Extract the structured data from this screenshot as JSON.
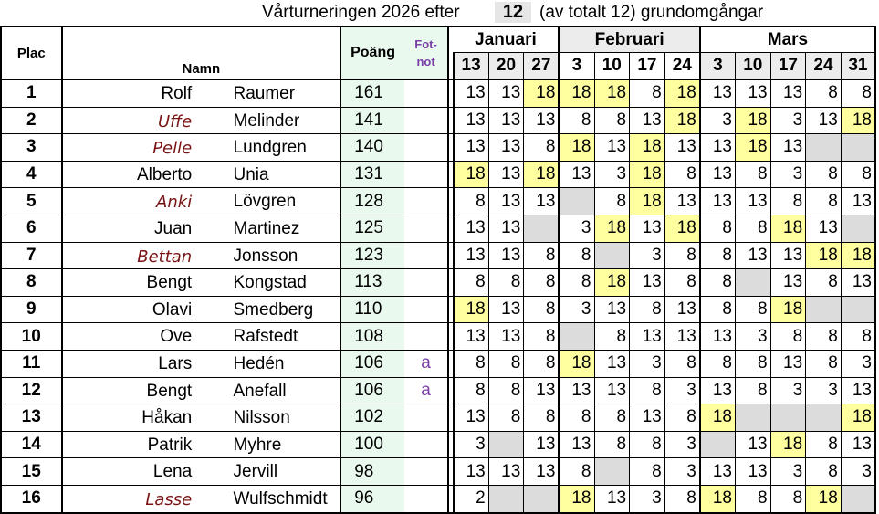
{
  "header": {
    "title_prefix": "Vårturneringen 2026 efter",
    "rounds_done": "12",
    "title_suffix": "(av totalt 12) grundomgångar"
  },
  "columns": {
    "plac": "Plac",
    "namn": "Namn",
    "poang": "Poäng",
    "fotnot": "Fot-\nnot",
    "months": [
      "Januari",
      "Februari",
      "Mars"
    ],
    "dates": [
      "13",
      "20",
      "27",
      "3",
      "10",
      "17",
      "24",
      "3",
      "10",
      "17",
      "24",
      "31"
    ]
  },
  "colors": {
    "highlight": "#ffffa0",
    "absent": "#dcdcdc",
    "points_bg": "#e9f9ee",
    "female_name": "#7a1414",
    "footnote": "#7a3fa8"
  },
  "players": [
    {
      "plac": "1",
      "first": "Rolf",
      "female": false,
      "last": "Raumer",
      "points": "161",
      "fotnot": "",
      "scores": [
        "13",
        "13",
        "18",
        "18",
        "18",
        "8",
        "18",
        "13",
        "13",
        "13",
        "8",
        "8"
      ]
    },
    {
      "plac": "2",
      "first": "Uffe",
      "female": true,
      "last": "Melinder",
      "points": "141",
      "fotnot": "",
      "scores": [
        "13",
        "13",
        "13",
        "8",
        "8",
        "13",
        "18",
        "3",
        "18",
        "3",
        "13",
        "18"
      ]
    },
    {
      "plac": "3",
      "first": "Pelle",
      "female": true,
      "last": "Lundgren",
      "points": "140",
      "fotnot": "",
      "scores": [
        "13",
        "13",
        "8",
        "18",
        "13",
        "18",
        "13",
        "13",
        "18",
        "13",
        "",
        ""
      ]
    },
    {
      "plac": "4",
      "first": "Alberto",
      "female": false,
      "last": "Unia",
      "points": "131",
      "fotnot": "",
      "scores": [
        "18",
        "13",
        "18",
        "13",
        "3",
        "18",
        "8",
        "13",
        "8",
        "3",
        "8",
        "8"
      ]
    },
    {
      "plac": "5",
      "first": "Anki",
      "female": true,
      "last": "Lövgren",
      "points": "128",
      "fotnot": "",
      "scores": [
        "8",
        "13",
        "13",
        "",
        "8",
        "18",
        "13",
        "13",
        "13",
        "8",
        "8",
        "13"
      ]
    },
    {
      "plac": "6",
      "first": "Juan",
      "female": false,
      "last": "Martinez",
      "points": "125",
      "fotnot": "",
      "scores": [
        "13",
        "13",
        "",
        "3",
        "18",
        "13",
        "18",
        "8",
        "8",
        "18",
        "13",
        ""
      ]
    },
    {
      "plac": "7",
      "first": "Bettan",
      "female": true,
      "last": "Jonsson",
      "points": "123",
      "fotnot": "",
      "scores": [
        "13",
        "13",
        "8",
        "8",
        "",
        "3",
        "8",
        "8",
        "13",
        "13",
        "18",
        "18"
      ]
    },
    {
      "plac": "8",
      "first": "Bengt",
      "female": false,
      "last": "Kongstad",
      "points": "113",
      "fotnot": "",
      "scores": [
        "8",
        "8",
        "8",
        "8",
        "18",
        "13",
        "8",
        "8",
        "",
        "13",
        "8",
        "13"
      ]
    },
    {
      "plac": "9",
      "first": "Olavi",
      "female": false,
      "last": "Smedberg",
      "points": "110",
      "fotnot": "",
      "scores": [
        "18",
        "13",
        "8",
        "3",
        "13",
        "8",
        "13",
        "8",
        "8",
        "18",
        "",
        ""
      ]
    },
    {
      "plac": "10",
      "first": "Ove",
      "female": false,
      "last": "Rafstedt",
      "points": "108",
      "fotnot": "",
      "scores": [
        "13",
        "13",
        "8",
        "",
        "8",
        "13",
        "13",
        "13",
        "3",
        "8",
        "8",
        "8"
      ]
    },
    {
      "plac": "11",
      "first": "Lars",
      "female": false,
      "last": "Hedén",
      "points": "106",
      "fotnot": "a",
      "scores": [
        "8",
        "8",
        "8",
        "18",
        "13",
        "3",
        "8",
        "8",
        "8",
        "13",
        "8",
        "3"
      ]
    },
    {
      "plac": "12",
      "first": "Bengt",
      "female": false,
      "last": "Anefall",
      "points": "106",
      "fotnot": "a",
      "scores": [
        "8",
        "8",
        "13",
        "13",
        "13",
        "8",
        "3",
        "13",
        "8",
        "3",
        "3",
        "13"
      ]
    },
    {
      "plac": "13",
      "first": "Håkan",
      "female": false,
      "last": "Nilsson",
      "points": "102",
      "fotnot": "",
      "scores": [
        "13",
        "8",
        "8",
        "8",
        "8",
        "13",
        "8",
        "18",
        "",
        "",
        "",
        "18"
      ]
    },
    {
      "plac": "14",
      "first": "Patrik",
      "female": false,
      "last": "Myhre",
      "points": "100",
      "fotnot": "",
      "scores": [
        "3",
        "",
        "13",
        "13",
        "8",
        "8",
        "3",
        "",
        "13",
        "18",
        "8",
        "13"
      ]
    },
    {
      "plac": "15",
      "first": "Lena",
      "female": false,
      "last": "Jervill",
      "points": "98",
      "fotnot": "",
      "scores": [
        "13",
        "13",
        "13",
        "8",
        "",
        "8",
        "3",
        "13",
        "13",
        "3",
        "8",
        "3"
      ]
    },
    {
      "plac": "16",
      "first": "Lasse",
      "female": true,
      "last": "Wulfschmidt",
      "points": "96",
      "fotnot": "",
      "scores": [
        "2",
        "",
        "",
        "18",
        "13",
        "3",
        "8",
        "18",
        "8",
        "8",
        "18",
        ""
      ]
    }
  ]
}
